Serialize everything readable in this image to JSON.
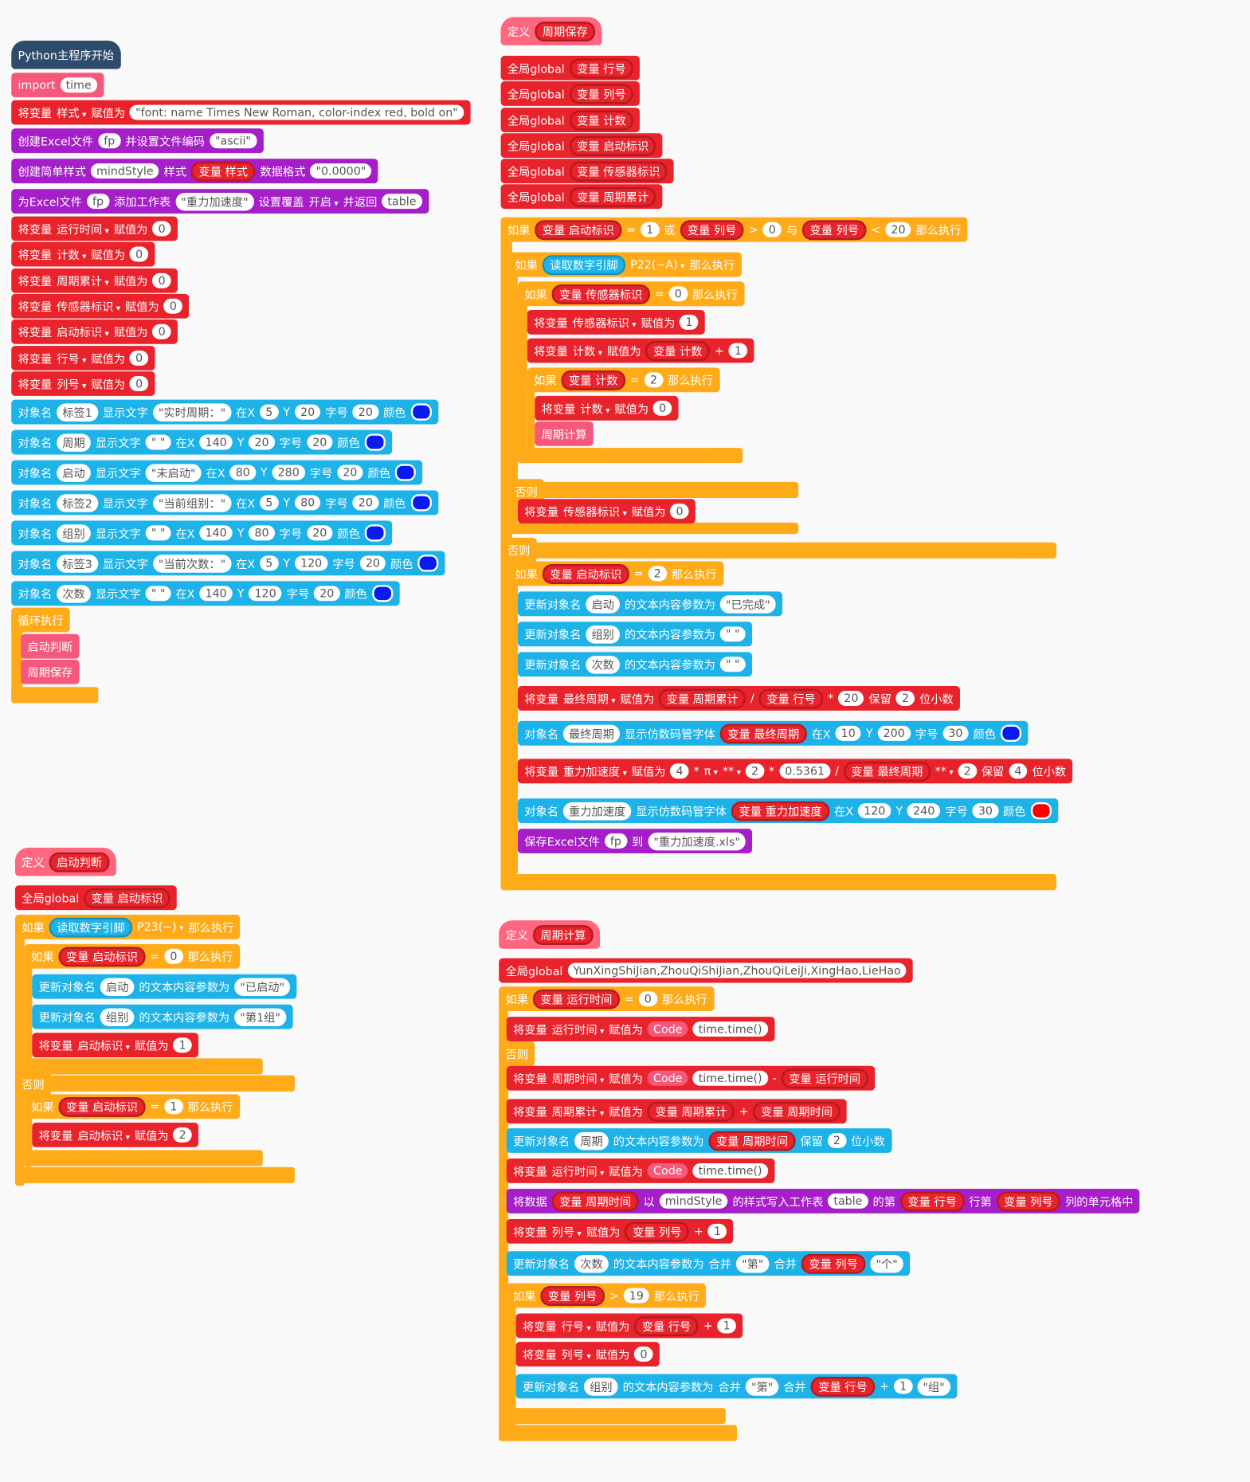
{
  "stacks": [
    {
      "rows": [
        [
          "Python主程序开始"
        ],
        [
          "import",
          "time"
        ],
        [
          "将变量",
          "样式",
          "赋值为",
          "\"font: name Times New Roman, color-index red, bold on\""
        ],
        [
          "创建Excel文件",
          "fp",
          "并设置文件编码",
          "\"ascii\""
        ],
        [
          "创建简单样式",
          "mindStyle",
          "样式",
          "变量 样式",
          "数据格式",
          "\"0.0000\""
        ],
        [
          "为Excel文件",
          "fp",
          "添加工作表",
          "\"重力加速度\"",
          "设置覆盖",
          "开启",
          "并返回",
          "table"
        ],
        [
          "将变量",
          "运行时间",
          "赋值为",
          "0"
        ],
        [
          "将变量",
          "计数",
          "赋值为",
          "0"
        ],
        [
          "将变量",
          "周期累计",
          "赋值为",
          "0"
        ],
        [
          "将变量",
          "传感器标识",
          "赋值为",
          "0"
        ],
        [
          "将变量",
          "启动标识",
          "赋值为",
          "0"
        ],
        [
          "将变量",
          "行号",
          "赋值为",
          "0"
        ],
        [
          "将变量",
          "列号",
          "赋值为",
          "0"
        ],
        [
          "对象名",
          "标签1",
          "显示文字",
          "\"实时周期：\"",
          "在X",
          "5",
          "Y",
          "20",
          "字号",
          "20",
          "颜色"
        ],
        [
          "对象名",
          "周期",
          "显示文字",
          "\" \"",
          "在X",
          "140",
          "Y",
          "20",
          "字号",
          "20",
          "颜色"
        ],
        [
          "对象名",
          "启动",
          "显示文字",
          "\"未启动\"",
          "在X",
          "80",
          "Y",
          "280",
          "字号",
          "20",
          "颜色"
        ],
        [
          "对象名",
          "标签2",
          "显示文字",
          "\"当前组别：\"",
          "在X",
          "5",
          "Y",
          "80",
          "字号",
          "20",
          "颜色"
        ],
        [
          "对象名",
          "组别",
          "显示文字",
          "\" \"",
          "在X",
          "140",
          "Y",
          "80",
          "字号",
          "20",
          "颜色"
        ],
        [
          "对象名",
          "标签3",
          "显示文字",
          "\"当前次数：\"",
          "在X",
          "5",
          "Y",
          "120",
          "字号",
          "20",
          "颜色"
        ],
        [
          "对象名",
          "次数",
          "显示文字",
          "\" \"",
          "在X",
          "140",
          "Y",
          "120",
          "字号",
          "20",
          "颜色"
        ],
        [
          "循环执行"
        ],
        [
          "启动判断"
        ],
        [
          "周期保存"
        ]
      ]
    },
    {
      "rows": [
        [
          "定义",
          "周期保存"
        ],
        [
          "全局global",
          "变量 行号"
        ],
        [
          "全局global",
          "变量 列号"
        ],
        [
          "全局global",
          "变量 计数"
        ],
        [
          "全局global",
          "变量 启动标识"
        ],
        [
          "全局global",
          "变量 传感器标识"
        ],
        [
          "全局global",
          "变量 周期累计"
        ],
        [
          "如果",
          "变量 启动标识",
          "=",
          "1",
          "或",
          "变量 列号",
          ">",
          "0",
          "与",
          "变量 列号",
          "<",
          "20",
          "那么执行"
        ],
        [
          "如果",
          "读取数字引脚",
          "P22(~A)",
          "那么执行"
        ],
        [
          "如果",
          "变量 传感器标识",
          "=",
          "0",
          "那么执行"
        ],
        [
          "将变量",
          "传感器标识",
          "赋值为",
          "1"
        ],
        [
          "将变量",
          "计数",
          "赋值为",
          "变量 计数",
          "+",
          "1"
        ],
        [
          "如果",
          "变量 计数",
          "=",
          "2",
          "那么执行"
        ],
        [
          "将变量",
          "计数",
          "赋值为",
          "0"
        ],
        [
          "周期计算"
        ],
        [
          "否则"
        ],
        [
          "将变量",
          "传感器标识",
          "赋值为",
          "0"
        ],
        [
          "否则"
        ],
        [
          "如果",
          "变量 启动标识",
          "=",
          "2",
          "那么执行"
        ],
        [
          "更新对象名",
          "启动",
          "的文本内容参数为",
          "\"已完成\""
        ],
        [
          "更新对象名",
          "组别",
          "的文本内容参数为",
          "\" \""
        ],
        [
          "更新对象名",
          "次数",
          "的文本内容参数为",
          "\" \""
        ],
        [
          "将变量",
          "最终周期",
          "赋值为",
          "变量 周期累计",
          "/",
          "变量 行号",
          "*",
          "20",
          "保留",
          "2",
          "位小数"
        ],
        [
          "对象名",
          "最终周期",
          "显示仿数码管字体",
          "变量 最终周期",
          "在X",
          "10",
          "Y",
          "200",
          "字号",
          "30",
          "颜色"
        ],
        [
          "将变量",
          "重力加速度",
          "赋值为",
          "4",
          "*",
          "π",
          "**",
          "2",
          "*",
          "0.5361",
          "/",
          "变量 最终周期",
          "**",
          "2",
          "保留",
          "4",
          "位小数"
        ],
        [
          "对象名",
          "重力加速度",
          "显示仿数码管字体",
          "变量 重力加速度",
          "在X",
          "120",
          "Y",
          "240",
          "字号",
          "30",
          "颜色"
        ],
        [
          "保存Excel文件",
          "fp",
          "到",
          "\"重力加速度.xls\""
        ]
      ]
    },
    {
      "rows": [
        [
          "定义",
          "启动判断"
        ],
        [
          "全局global",
          "变量 启动标识"
        ],
        [
          "如果",
          "读取数字引脚",
          "P23(~)",
          "那么执行"
        ],
        [
          "如果",
          "变量 启动标识",
          "=",
          "0",
          "那么执行"
        ],
        [
          "更新对象名",
          "启动",
          "的文本内容参数为",
          "\"已启动\""
        ],
        [
          "更新对象名",
          "组别",
          "的文本内容参数为",
          "\"第1组\""
        ],
        [
          "将变量",
          "启动标识",
          "赋值为",
          "1"
        ],
        [
          "否则"
        ],
        [
          "如果",
          "变量 启动标识",
          "=",
          "1",
          "那么执行"
        ],
        [
          "将变量",
          "启动标识",
          "赋值为",
          "2"
        ]
      ]
    },
    {
      "rows": [
        [
          "定义",
          "周期计算"
        ],
        [
          "全局global",
          "YunXingShiJian,ZhouQiShiJian,ZhouQiLeiJi,XingHao,LieHao"
        ],
        [
          "如果",
          "变量 运行时间",
          "=",
          "0",
          "那么执行"
        ],
        [
          "将变量",
          "运行时间",
          "赋值为",
          "Code",
          "time.time()"
        ],
        [
          "否则"
        ],
        [
          "将变量",
          "周期时间",
          "赋值为",
          "Code",
          "time.time()",
          "-",
          "变量 运行时间"
        ],
        [
          "将变量",
          "周期累计",
          "赋值为",
          "变量 周期累计",
          "+",
          "变量 周期时间"
        ],
        [
          "更新对象名",
          "周期",
          "的文本内容参数为",
          "变量 周期时间",
          "保留",
          "2",
          "位小数"
        ],
        [
          "将变量",
          "运行时间",
          "赋值为",
          "Code",
          "time.time()"
        ],
        [
          "将数据",
          "变量 周期时间",
          "以",
          "mindStyle",
          "的样式写入工作表",
          "table",
          "的第",
          "变量 行号",
          "行第",
          "变量 列号",
          "列的单元格中"
        ],
        [
          "将变量",
          "列号",
          "赋值为",
          "变量 列号",
          "+",
          "1"
        ],
        [
          "更新对象名",
          "次数",
          "的文本内容参数为",
          "合并",
          "\"第\"",
          "合并",
          "变量 列号",
          "\"个\""
        ],
        [
          "如果",
          "变量 列号",
          ">",
          "19",
          "那么执行"
        ],
        [
          "将变量",
          "行号",
          "赋值为",
          "变量 行号",
          "+",
          "1"
        ],
        [
          "将变量",
          "列号",
          "赋值为",
          "0"
        ],
        [
          "更新对象名",
          "组别",
          "的文本内容参数为",
          "合并",
          "\"第\"",
          "合并",
          "变量 行号",
          "+",
          "1",
          "\"组\""
        ]
      ]
    }
  ]
}
